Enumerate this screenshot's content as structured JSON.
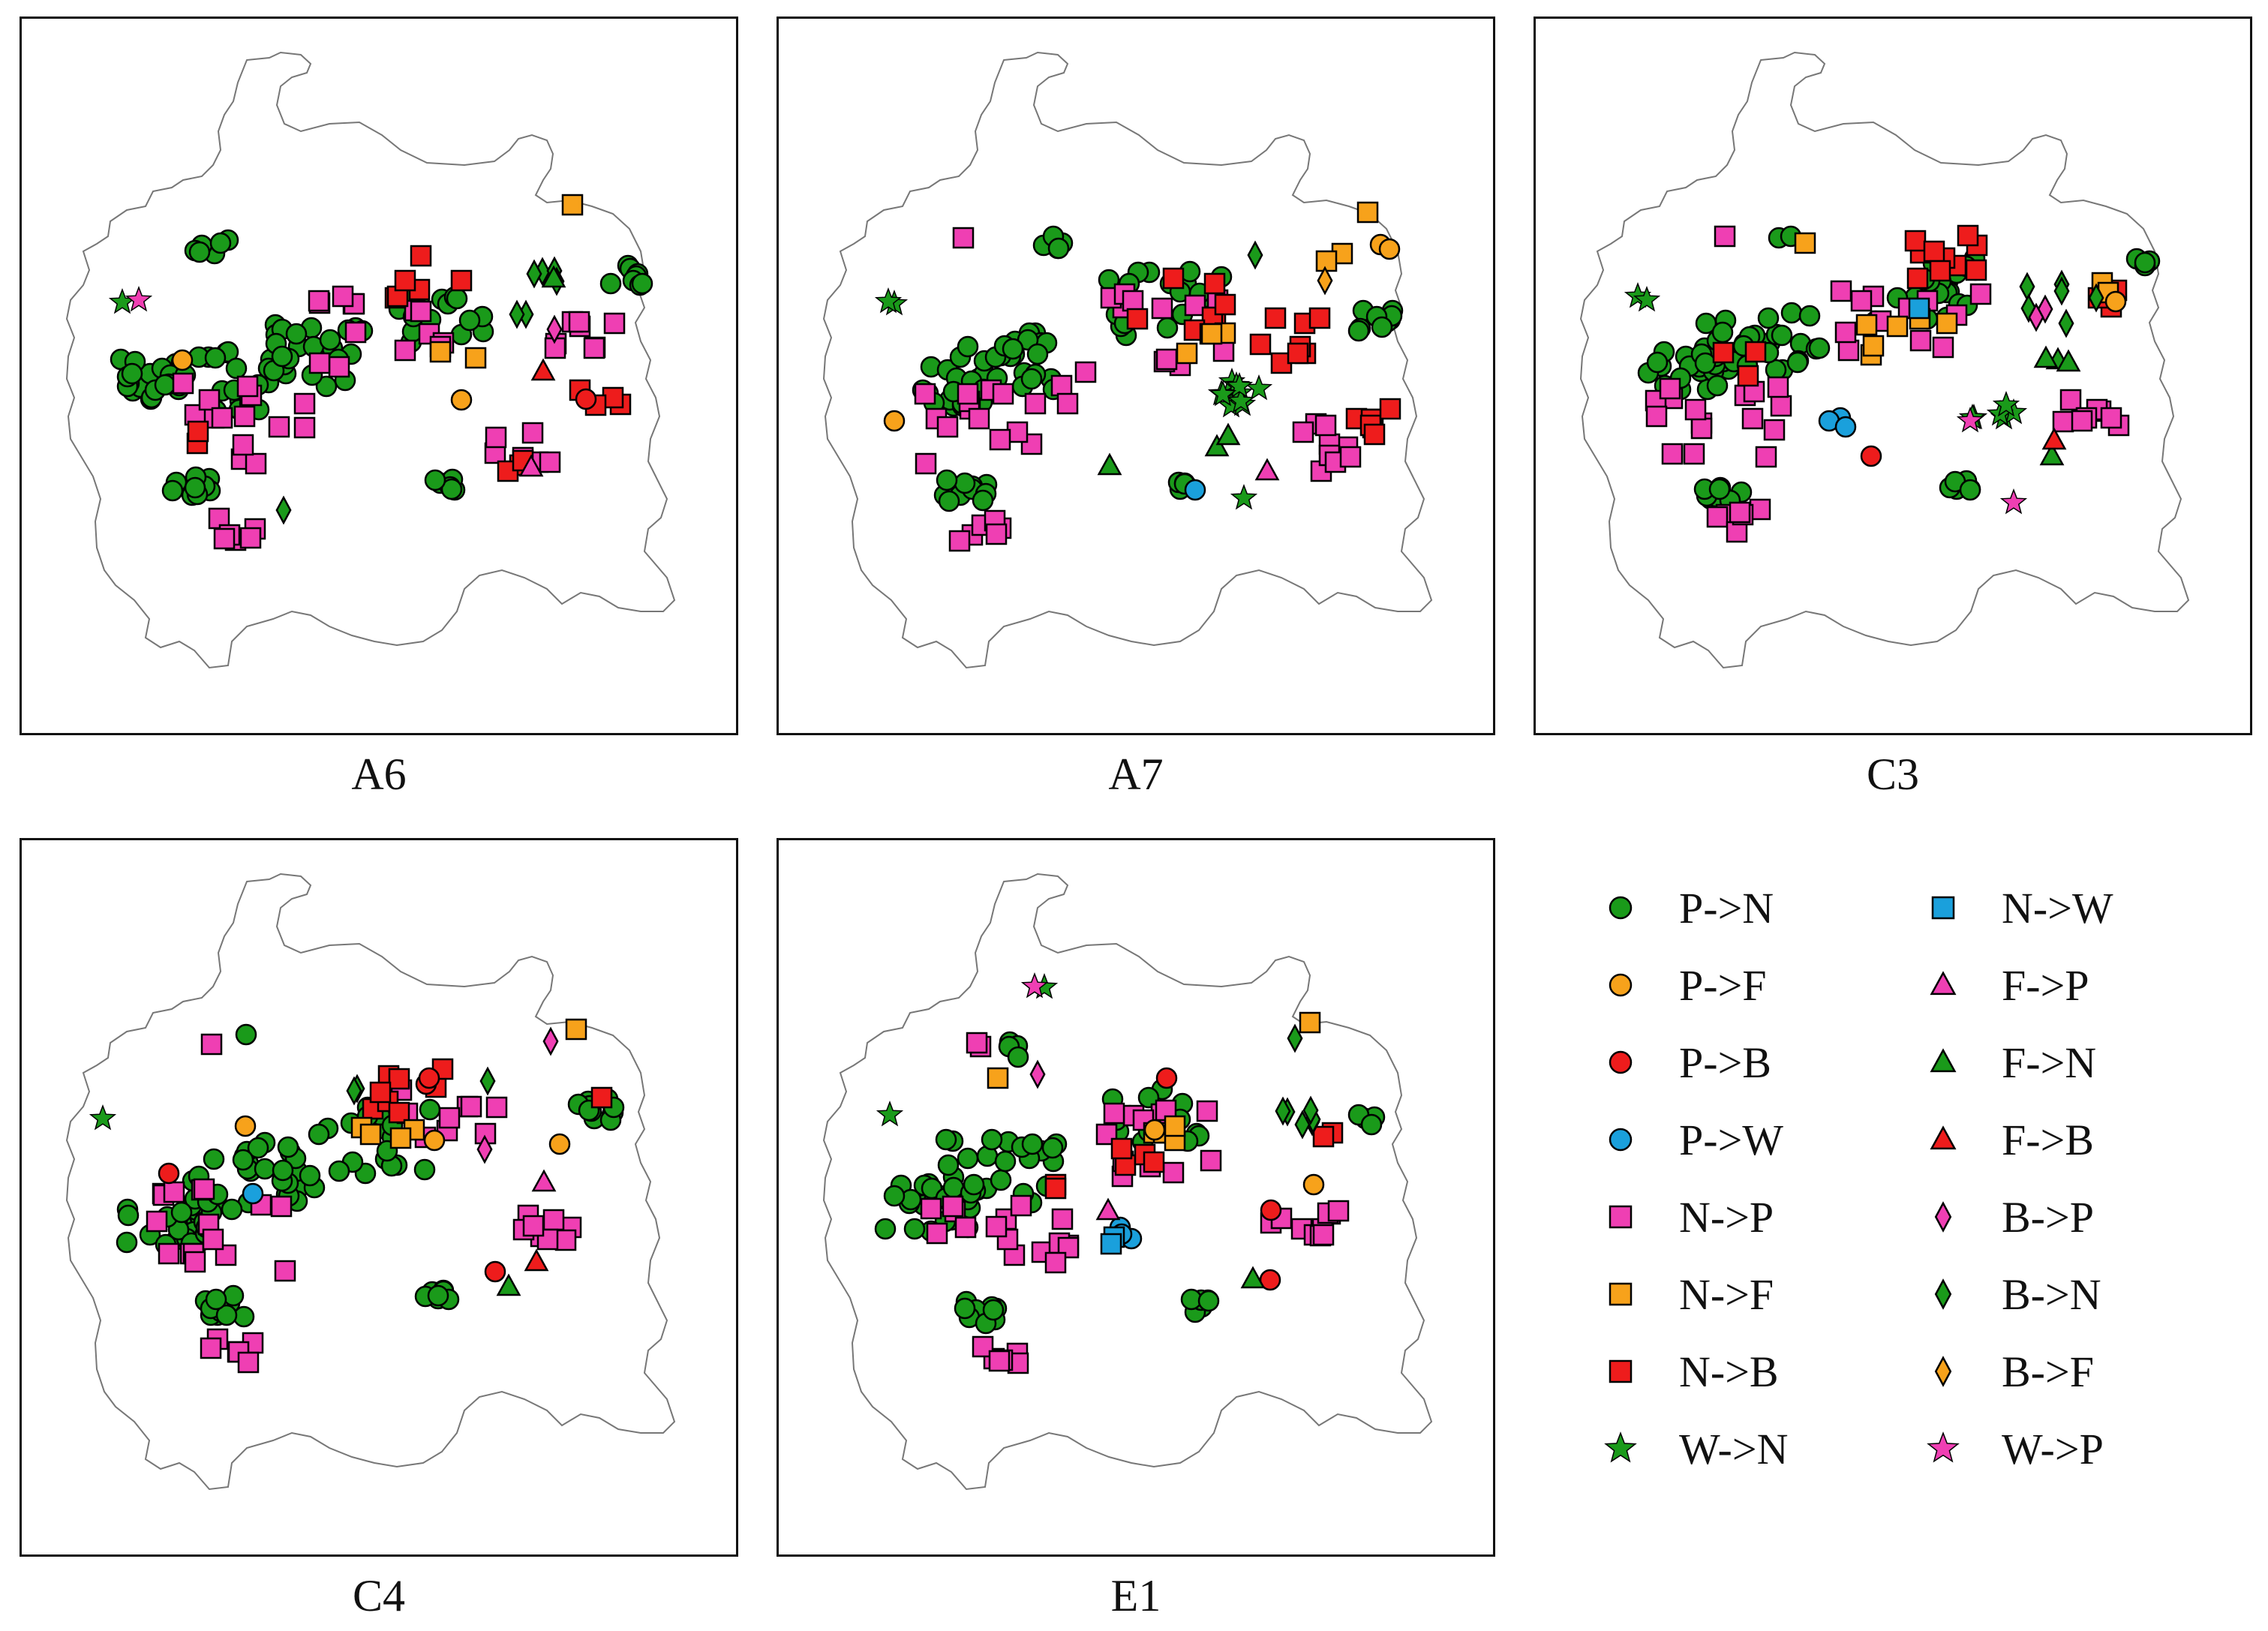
{
  "panels": [
    {
      "label": "A6"
    },
    {
      "label": "A7"
    },
    {
      "label": "C3"
    },
    {
      "label": "C4"
    },
    {
      "label": "E1"
    }
  ],
  "legend": [
    {
      "label": "P->N",
      "shape": "circle",
      "color": "#1a9a1a"
    },
    {
      "label": "P->F",
      "shape": "circle",
      "color": "#f7a21b"
    },
    {
      "label": "P->B",
      "shape": "circle",
      "color": "#ee1c1c"
    },
    {
      "label": "P->W",
      "shape": "circle",
      "color": "#1aa0dc"
    },
    {
      "label": "N->P",
      "shape": "square",
      "color": "#ef3fb3"
    },
    {
      "label": "N->F",
      "shape": "square",
      "color": "#f7a21b"
    },
    {
      "label": "N->B",
      "shape": "square",
      "color": "#ee1c1c"
    },
    {
      "label": "W->N",
      "shape": "star",
      "color": "#1a9a1a"
    },
    {
      "label": "N->W",
      "shape": "square",
      "color": "#1aa0dc"
    },
    {
      "label": "F->P",
      "shape": "triangle",
      "color": "#ef3fb3"
    },
    {
      "label": "F->N",
      "shape": "triangle",
      "color": "#1a9a1a"
    },
    {
      "label": "F->B",
      "shape": "triangle",
      "color": "#ee1c1c"
    },
    {
      "label": "B->P",
      "shape": "diamond",
      "color": "#ef3fb3"
    },
    {
      "label": "B->N",
      "shape": "diamond",
      "color": "#1a9a1a"
    },
    {
      "label": "B->F",
      "shape": "diamond",
      "color": "#f7a21b"
    },
    {
      "label": "W->P",
      "shape": "star",
      "color": "#ef3fb3"
    }
  ]
}
